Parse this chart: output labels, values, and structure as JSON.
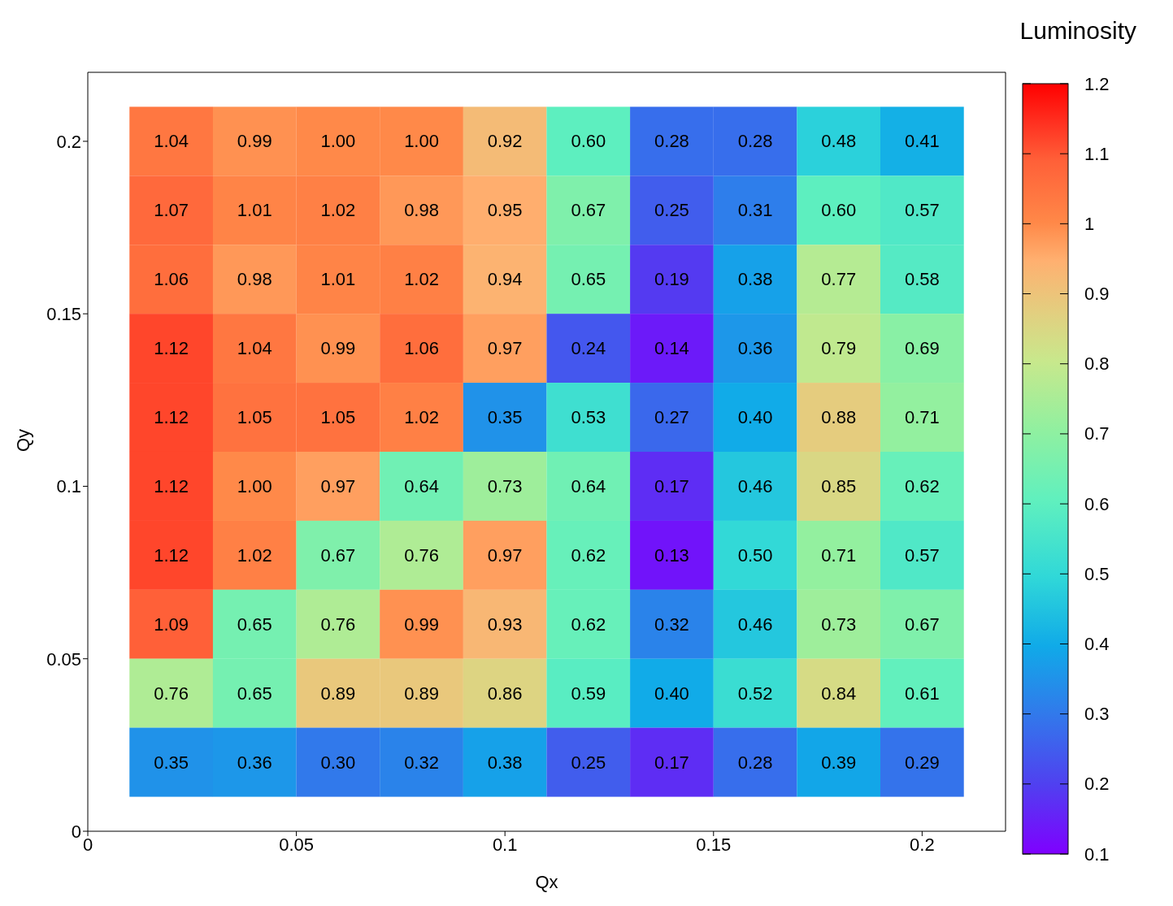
{
  "chart_data": {
    "type": "heatmap",
    "xlabel": "Qx",
    "ylabel": "Qy",
    "clabel": "Luminosity",
    "x": [
      0.02,
      0.04,
      0.06,
      0.08,
      0.1,
      0.12,
      0.14,
      0.16,
      0.18,
      0.2
    ],
    "y": [
      0.2,
      0.18,
      0.16,
      0.14,
      0.12,
      0.1,
      0.08,
      0.06,
      0.04,
      0.02
    ],
    "xlim": [
      0,
      0.22
    ],
    "ylim": [
      0,
      0.22
    ],
    "xticks": [
      0,
      0.05,
      0.1,
      0.15,
      0.2
    ],
    "yticks": [
      0,
      0.05,
      0.1,
      0.15,
      0.2
    ],
    "clim": [
      0.1,
      1.2
    ],
    "cticks": [
      0.1,
      0.2,
      0.3,
      0.4,
      0.5,
      0.6,
      0.7,
      0.8,
      0.9,
      1,
      1.1,
      1.2
    ],
    "cells": [
      [
        1.04,
        0.99,
        1.0,
        1.0,
        0.92,
        0.6,
        0.28,
        0.28,
        0.48,
        0.41
      ],
      [
        1.07,
        1.01,
        1.02,
        0.98,
        0.95,
        0.67,
        0.25,
        0.31,
        0.6,
        0.57
      ],
      [
        1.06,
        0.98,
        1.01,
        1.02,
        0.94,
        0.65,
        0.19,
        0.38,
        0.77,
        0.58
      ],
      [
        1.12,
        1.04,
        0.99,
        1.06,
        0.97,
        0.24,
        0.14,
        0.36,
        0.79,
        0.69
      ],
      [
        1.12,
        1.05,
        1.05,
        1.02,
        0.35,
        0.53,
        0.27,
        0.4,
        0.88,
        0.71
      ],
      [
        1.12,
        1.0,
        0.97,
        0.64,
        0.73,
        0.64,
        0.17,
        0.46,
        0.85,
        0.62
      ],
      [
        1.12,
        1.02,
        0.67,
        0.76,
        0.97,
        0.62,
        0.13,
        0.5,
        0.71,
        0.57
      ],
      [
        1.09,
        0.65,
        0.76,
        0.99,
        0.93,
        0.62,
        0.32,
        0.46,
        0.73,
        0.67
      ],
      [
        0.76,
        0.65,
        0.89,
        0.89,
        0.86,
        0.59,
        0.4,
        0.52,
        0.84,
        0.61
      ],
      [
        0.35,
        0.36,
        0.3,
        0.32,
        0.38,
        0.25,
        0.17,
        0.28,
        0.39,
        0.29
      ]
    ],
    "cell_labels": [
      [
        "1.04",
        "0.99",
        "1.00",
        "1.00",
        "0.92",
        "0.60",
        "0.28",
        "0.28",
        "0.48",
        "0.41"
      ],
      [
        "1.07",
        "1.01",
        "1.02",
        "0.98",
        "0.95",
        "0.67",
        "0.25",
        "0.31",
        "0.60",
        "0.57"
      ],
      [
        "1.06",
        "0.98",
        "1.01",
        "1.02",
        "0.94",
        "0.65",
        "0.19",
        "0.38",
        "0.77",
        "0.58"
      ],
      [
        "1.12",
        "1.04",
        "0.99",
        "1.06",
        "0.97",
        "0.24",
        "0.14",
        "0.36",
        "0.79",
        "0.69"
      ],
      [
        "1.12",
        "1.05",
        "1.05",
        "1.02",
        "0.35",
        "0.53",
        "0.27",
        "0.40",
        "0.88",
        "0.71"
      ],
      [
        "1.12",
        "1.00",
        "0.97",
        "0.64",
        "0.73",
        "0.64",
        "0.17",
        "0.46",
        "0.85",
        "0.62"
      ],
      [
        "1.12",
        "1.02",
        "0.67",
        "0.76",
        "0.97",
        "0.62",
        "0.13",
        "0.50",
        "0.71",
        "0.57"
      ],
      [
        "1.09",
        "0.65",
        "0.76",
        "0.99",
        "0.93",
        "0.62",
        "0.32",
        "0.46",
        "0.73",
        "0.67"
      ],
      [
        "0.76",
        "0.65",
        "0.89",
        "0.89",
        "0.86",
        "0.59",
        "0.40",
        "0.52",
        "0.84",
        "0.61"
      ],
      [
        "0.35",
        "0.36",
        "0.30",
        "0.32",
        "0.38",
        "0.25",
        "0.17",
        "0.28",
        "0.39",
        "0.29"
      ]
    ]
  }
}
